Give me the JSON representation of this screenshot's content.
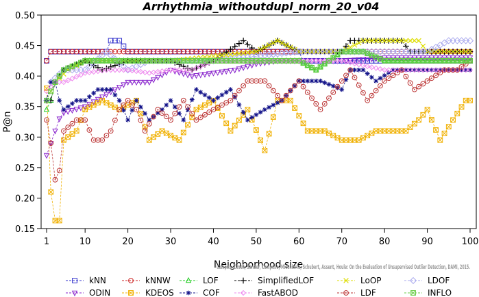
{
  "chart_data": {
    "type": "line",
    "title": "Arrhythmia_withoutdupl_norm_20_v04",
    "xlabel": "Neighborhood size",
    "ylabel": "P@n",
    "xlim": [
      1,
      100
    ],
    "ylim": [
      0.15,
      0.5
    ],
    "xticks": [
      1,
      10,
      20,
      30,
      40,
      50,
      60,
      70,
      80,
      90,
      100
    ],
    "yticks": [
      0.15,
      0.2,
      0.25,
      0.3,
      0.35,
      0.4,
      0.45,
      0.5
    ],
    "ytick_labels": [
      "0.15",
      "0.20",
      "0.25",
      "0.30",
      "0.35",
      "0.40",
      "0.45",
      "0.50"
    ],
    "legend_position": "bottom",
    "credit": "Campos, Zimek, Sander, Campello, Micenkova, Schubert, Assent, Houle: On the Evaluation of Unsupervised Outlier Detection, DAMI, 2015.",
    "series": [
      {
        "name": "kNN",
        "color": "#3333cc",
        "marker": "square",
        "keypoints": [
          [
            1,
            0.425
          ],
          [
            2,
            0.44
          ],
          [
            10,
            0.44
          ],
          [
            15,
            0.44
          ],
          [
            16,
            0.458
          ],
          [
            18,
            0.458
          ],
          [
            20,
            0.44
          ],
          [
            60,
            0.44
          ],
          [
            61,
            0.425
          ],
          [
            100,
            0.425
          ]
        ]
      },
      {
        "name": "kNNW",
        "color": "#cc2222",
        "marker": "circle",
        "keypoints": [
          [
            1,
            0.425
          ],
          [
            2,
            0.44
          ],
          [
            100,
            0.44
          ]
        ]
      },
      {
        "name": "LOF",
        "color": "#22cc22",
        "marker": "triangle",
        "keypoints": [
          [
            1,
            0.345
          ],
          [
            2,
            0.36
          ],
          [
            3,
            0.39
          ],
          [
            5,
            0.41
          ],
          [
            10,
            0.425
          ],
          [
            20,
            0.425
          ],
          [
            30,
            0.425
          ],
          [
            40,
            0.425
          ],
          [
            60,
            0.425
          ],
          [
            64,
            0.41
          ],
          [
            70,
            0.44
          ],
          [
            75,
            0.44
          ],
          [
            80,
            0.425
          ],
          [
            90,
            0.425
          ],
          [
            100,
            0.425
          ]
        ]
      },
      {
        "name": "SimplifiedLOF",
        "color": "#000000",
        "marker": "plus",
        "keypoints": [
          [
            1,
            0.36
          ],
          [
            2,
            0.36
          ],
          [
            3,
            0.39
          ],
          [
            5,
            0.41
          ],
          [
            10,
            0.425
          ],
          [
            14,
            0.41
          ],
          [
            20,
            0.425
          ],
          [
            25,
            0.425
          ],
          [
            30,
            0.425
          ],
          [
            35,
            0.41
          ],
          [
            40,
            0.425
          ],
          [
            47,
            0.458
          ],
          [
            50,
            0.44
          ],
          [
            55,
            0.458
          ],
          [
            60,
            0.44
          ],
          [
            70,
            0.44
          ],
          [
            72,
            0.458
          ],
          [
            84,
            0.458
          ],
          [
            86,
            0.44
          ],
          [
            100,
            0.44
          ]
        ]
      },
      {
        "name": "LoOP",
        "color": "#dddd00",
        "marker": "x",
        "keypoints": [
          [
            1,
            0.36
          ],
          [
            3,
            0.39
          ],
          [
            6,
            0.41
          ],
          [
            10,
            0.425
          ],
          [
            30,
            0.425
          ],
          [
            50,
            0.44
          ],
          [
            55,
            0.458
          ],
          [
            60,
            0.44
          ],
          [
            70,
            0.44
          ],
          [
            75,
            0.458
          ],
          [
            88,
            0.458
          ],
          [
            90,
            0.44
          ],
          [
            100,
            0.44
          ]
        ]
      },
      {
        "name": "LDOF",
        "color": "#aaaaee",
        "marker": "diamond",
        "keypoints": [
          [
            1,
            0.36
          ],
          [
            2,
            0.39
          ],
          [
            5,
            0.41
          ],
          [
            10,
            0.41
          ],
          [
            15,
            0.44
          ],
          [
            20,
            0.41
          ],
          [
            25,
            0.425
          ],
          [
            30,
            0.425
          ],
          [
            40,
            0.425
          ],
          [
            60,
            0.44
          ],
          [
            70,
            0.44
          ],
          [
            80,
            0.44
          ],
          [
            90,
            0.44
          ],
          [
            95,
            0.458
          ],
          [
            100,
            0.458
          ]
        ]
      },
      {
        "name": "ODIN",
        "color": "#8822cc",
        "marker": "triangle-down",
        "keypoints": [
          [
            1,
            0.27
          ],
          [
            2,
            0.29
          ],
          [
            3,
            0.31
          ],
          [
            4,
            0.33
          ],
          [
            5,
            0.34
          ],
          [
            10,
            0.35
          ],
          [
            15,
            0.37
          ],
          [
            20,
            0.39
          ],
          [
            25,
            0.39
          ],
          [
            30,
            0.41
          ],
          [
            35,
            0.4
          ],
          [
            40,
            0.405
          ],
          [
            45,
            0.41
          ],
          [
            50,
            0.42
          ],
          [
            55,
            0.425
          ],
          [
            60,
            0.425
          ],
          [
            70,
            0.425
          ],
          [
            80,
            0.43
          ],
          [
            90,
            0.43
          ],
          [
            100,
            0.43
          ]
        ]
      },
      {
        "name": "KDEOS",
        "color": "#f0b000",
        "marker": "square-x",
        "keypoints": [
          [
            1,
            0.38
          ],
          [
            2,
            0.21
          ],
          [
            3,
            0.163
          ],
          [
            4,
            0.163
          ],
          [
            5,
            0.295
          ],
          [
            8,
            0.31
          ],
          [
            10,
            0.345
          ],
          [
            14,
            0.36
          ],
          [
            18,
            0.345
          ],
          [
            22,
            0.36
          ],
          [
            25,
            0.295
          ],
          [
            28,
            0.31
          ],
          [
            32,
            0.295
          ],
          [
            36,
            0.345
          ],
          [
            40,
            0.36
          ],
          [
            44,
            0.31
          ],
          [
            48,
            0.345
          ],
          [
            52,
            0.278
          ],
          [
            55,
            0.36
          ],
          [
            58,
            0.36
          ],
          [
            62,
            0.31
          ],
          [
            66,
            0.31
          ],
          [
            70,
            0.295
          ],
          [
            74,
            0.295
          ],
          [
            78,
            0.31
          ],
          [
            82,
            0.31
          ],
          [
            85,
            0.31
          ],
          [
            88,
            0.328
          ],
          [
            90,
            0.345
          ],
          [
            93,
            0.295
          ],
          [
            96,
            0.328
          ],
          [
            99,
            0.36
          ],
          [
            100,
            0.36
          ]
        ]
      },
      {
        "name": "COF",
        "color": "#111188",
        "marker": "star",
        "keypoints": [
          [
            1,
            0.36
          ],
          [
            2,
            0.39
          ],
          [
            3,
            0.39
          ],
          [
            4,
            0.36
          ],
          [
            5,
            0.345
          ],
          [
            8,
            0.36
          ],
          [
            10,
            0.36
          ],
          [
            13,
            0.378
          ],
          [
            16,
            0.378
          ],
          [
            18,
            0.36
          ],
          [
            20,
            0.328
          ],
          [
            22,
            0.36
          ],
          [
            25,
            0.328
          ],
          [
            28,
            0.345
          ],
          [
            30,
            0.36
          ],
          [
            33,
            0.328
          ],
          [
            36,
            0.378
          ],
          [
            40,
            0.36
          ],
          [
            44,
            0.378
          ],
          [
            48,
            0.328
          ],
          [
            52,
            0.345
          ],
          [
            56,
            0.36
          ],
          [
            60,
            0.392
          ],
          [
            65,
            0.392
          ],
          [
            70,
            0.378
          ],
          [
            72,
            0.41
          ],
          [
            75,
            0.41
          ],
          [
            78,
            0.392
          ],
          [
            82,
            0.41
          ],
          [
            86,
            0.41
          ],
          [
            90,
            0.41
          ],
          [
            95,
            0.41
          ],
          [
            100,
            0.41
          ]
        ]
      },
      {
        "name": "FastABOD",
        "color": "#ee88ee",
        "marker": "diamond-small",
        "keypoints": [
          [
            1,
            0.375
          ],
          [
            3,
            0.39
          ],
          [
            5,
            0.39
          ],
          [
            10,
            0.405
          ],
          [
            15,
            0.41
          ],
          [
            20,
            0.41
          ],
          [
            25,
            0.405
          ],
          [
            30,
            0.41
          ],
          [
            35,
            0.41
          ],
          [
            40,
            0.425
          ],
          [
            50,
            0.425
          ],
          [
            60,
            0.425
          ],
          [
            70,
            0.425
          ],
          [
            80,
            0.41
          ],
          [
            90,
            0.41
          ],
          [
            100,
            0.41
          ]
        ]
      },
      {
        "name": "LDF",
        "color": "#bb3333",
        "marker": "circle-dot",
        "keypoints": [
          [
            1,
            0.328
          ],
          [
            2,
            0.29
          ],
          [
            3,
            0.23
          ],
          [
            4,
            0.245
          ],
          [
            5,
            0.31
          ],
          [
            8,
            0.328
          ],
          [
            10,
            0.328
          ],
          [
            12,
            0.295
          ],
          [
            14,
            0.295
          ],
          [
            16,
            0.31
          ],
          [
            18,
            0.345
          ],
          [
            20,
            0.36
          ],
          [
            22,
            0.345
          ],
          [
            24,
            0.31
          ],
          [
            27,
            0.345
          ],
          [
            30,
            0.328
          ],
          [
            33,
            0.36
          ],
          [
            36,
            0.328
          ],
          [
            40,
            0.345
          ],
          [
            44,
            0.36
          ],
          [
            48,
            0.392
          ],
          [
            52,
            0.392
          ],
          [
            56,
            0.36
          ],
          [
            60,
            0.392
          ],
          [
            65,
            0.345
          ],
          [
            70,
            0.392
          ],
          [
            72,
            0.41
          ],
          [
            76,
            0.36
          ],
          [
            80,
            0.392
          ],
          [
            84,
            0.41
          ],
          [
            87,
            0.378
          ],
          [
            90,
            0.392
          ],
          [
            94,
            0.41
          ],
          [
            97,
            0.41
          ],
          [
            100,
            0.425
          ]
        ]
      },
      {
        "name": "INFLO",
        "color": "#66cc44",
        "marker": "square-x",
        "keypoints": [
          [
            1,
            0.36
          ],
          [
            3,
            0.39
          ],
          [
            5,
            0.41
          ],
          [
            10,
            0.425
          ],
          [
            20,
            0.425
          ],
          [
            30,
            0.425
          ],
          [
            40,
            0.425
          ],
          [
            50,
            0.425
          ],
          [
            60,
            0.425
          ],
          [
            64,
            0.41
          ],
          [
            70,
            0.44
          ],
          [
            75,
            0.44
          ],
          [
            80,
            0.425
          ],
          [
            90,
            0.425
          ],
          [
            100,
            0.425
          ]
        ]
      }
    ]
  }
}
